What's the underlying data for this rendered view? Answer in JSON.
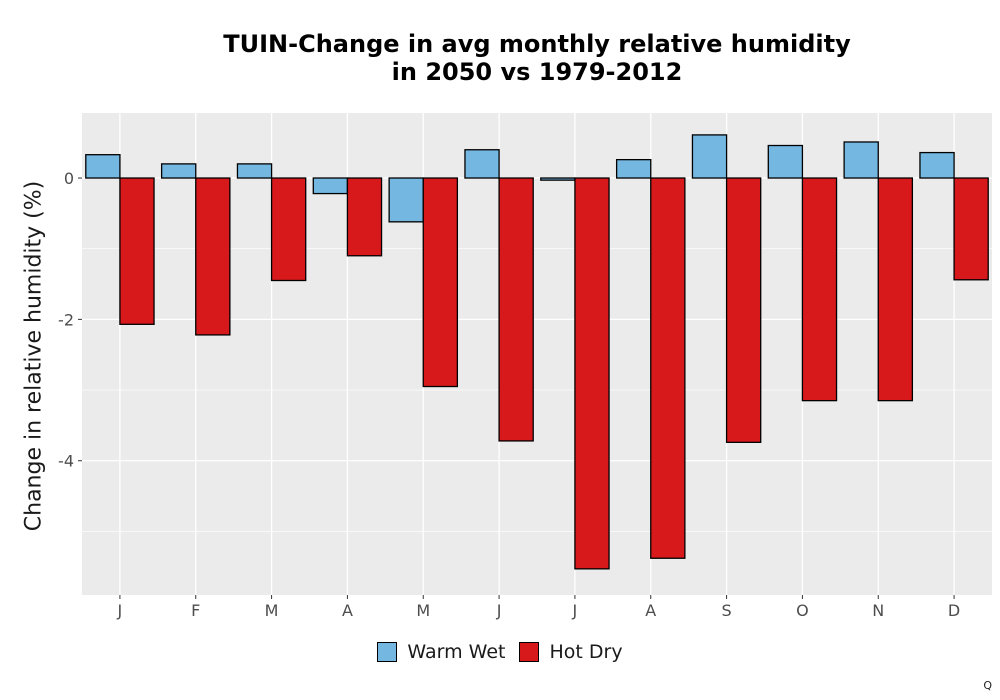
{
  "colors": {
    "panel": "#EBEBEB",
    "grid": "#FFFFFF",
    "warm_wet": "#74B8E2",
    "hot_dry": "#D7191C"
  },
  "corner_mark": "Q",
  "chart_data": {
    "type": "bar",
    "title": "TUIN-Change in avg monthly relative humidity",
    "subtitle": "in 2050 vs 1979-2012",
    "ylabel": "Change in relative humidity (%)",
    "xlabel": "",
    "categories": [
      "J",
      "F",
      "M",
      "A",
      "M",
      "J",
      "J",
      "A",
      "S",
      "O",
      "N",
      "D"
    ],
    "series": [
      {
        "name": "Warm Wet",
        "values": [
          0.33,
          0.2,
          0.2,
          -0.22,
          -0.62,
          0.4,
          -0.03,
          0.26,
          0.61,
          0.46,
          0.51,
          0.36
        ]
      },
      {
        "name": "Hot Dry",
        "values": [
          -2.07,
          -2.22,
          -1.45,
          -1.1,
          -2.95,
          -3.72,
          -5.53,
          -5.38,
          -3.74,
          -3.15,
          -3.15,
          -1.44
        ]
      }
    ],
    "ylim": [
      -5.9,
      0.92
    ],
    "yticks": [
      0,
      -2,
      -4
    ],
    "ytick_labels": [
      "0",
      "-2",
      "-4"
    ],
    "grid": true,
    "legend_position": "bottom"
  }
}
